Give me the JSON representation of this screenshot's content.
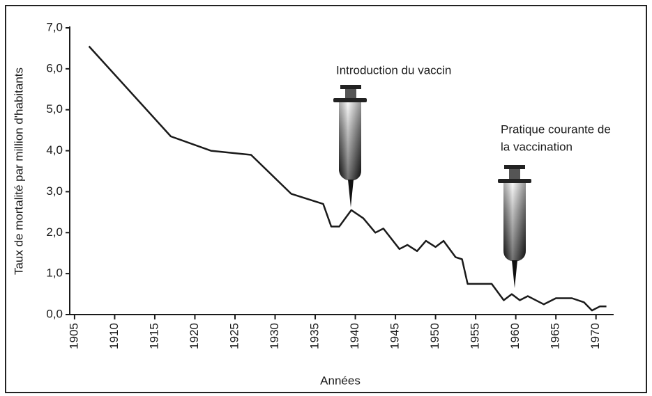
{
  "chart_data": {
    "type": "line",
    "y_label": "Taux de mortalité par million d'habitants",
    "x_label": "Années",
    "annotations": [
      "Introduction du vaccin",
      "Pratique courante de",
      "la vaccination"
    ],
    "x": [
      1906.8,
      1917,
      1922,
      1927,
      1932,
      1936,
      1937,
      1938,
      1939.5,
      1941,
      1942.5,
      1943.5,
      1945.5,
      1946.5,
      1947.7,
      1948.8,
      1950,
      1951,
      1952.5,
      1953.3,
      1954,
      1957,
      1958.5,
      1959.5,
      1960.5,
      1961.5,
      1963.5,
      1965,
      1967,
      1968.5,
      1969.5,
      1970.5,
      1971.3
    ],
    "values": [
      6.55,
      4.35,
      4.0,
      3.9,
      2.95,
      2.7,
      2.15,
      2.15,
      2.55,
      2.35,
      2.0,
      2.1,
      1.6,
      1.7,
      1.55,
      1.8,
      1.65,
      1.8,
      1.4,
      1.35,
      0.75,
      0.75,
      0.35,
      0.5,
      0.35,
      0.45,
      0.25,
      0.4,
      0.4,
      0.3,
      0.1,
      0.2,
      0.2
    ],
    "color": "#1a1a1a",
    "xlim": [
      1904.4,
      1972.2
    ],
    "xticks": [
      1905,
      1910,
      1915,
      1920,
      1925,
      1930,
      1935,
      1940,
      1945,
      1950,
      1955,
      1960,
      1965,
      1970
    ],
    "ylim": [
      0,
      7
    ],
    "yticks": [
      {
        "value": 0,
        "label": "0,0"
      },
      {
        "value": 1,
        "label": "1,0"
      },
      {
        "value": 2,
        "label": "2,0"
      },
      {
        "value": 3,
        "label": "3,0"
      },
      {
        "value": 4,
        "label": "4,0"
      },
      {
        "value": 5,
        "label": "5,0"
      },
      {
        "value": 6,
        "label": "6,0"
      },
      {
        "value": 7,
        "label": "7,0"
      }
    ]
  }
}
